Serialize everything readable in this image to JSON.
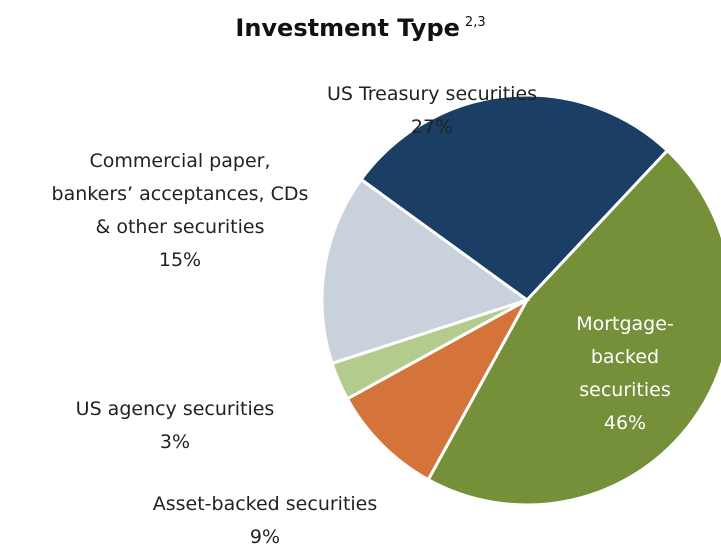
{
  "chart_data": {
    "type": "pie",
    "title": "Investment Type",
    "title_superscript": "2,3",
    "categories": [
      "US Treasury securities",
      "Mortgage-\nbacked\nsecurities",
      "Asset-backed securities",
      "US agency securities",
      "Commercial paper,\nbankers’ acceptances, CDs\n& other securities"
    ],
    "values": [
      27,
      46,
      9,
      3,
      15
    ],
    "value_labels": [
      "27%",
      "46%",
      "9%",
      "3%",
      "15%"
    ],
    "colors": [
      "#1b3e64",
      "#76903a",
      "#d4733a",
      "#b3cb8c",
      "#c9d2dc"
    ]
  }
}
